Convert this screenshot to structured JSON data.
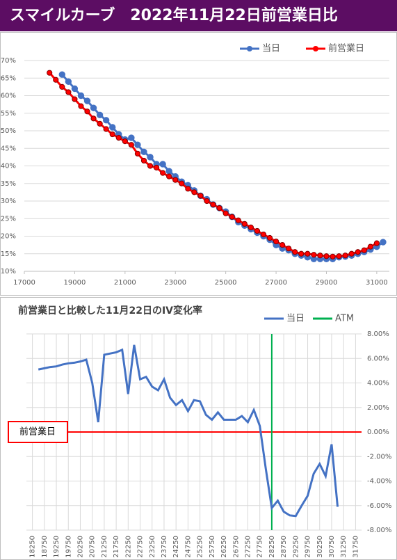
{
  "header": {
    "title": "スマイルカーブ　2022年11月22日前営業日比"
  },
  "chart_data": [
    {
      "type": "line",
      "legend": "top",
      "markers": true,
      "grid": true,
      "xlim": [
        17000,
        31500
      ],
      "xticks": [
        17000,
        19000,
        21000,
        23000,
        25000,
        27000,
        29000,
        31000
      ],
      "ylim": [
        10,
        70
      ],
      "yticks": [
        {
          "value": 10,
          "label": "10%"
        },
        {
          "value": 15,
          "label": "15%"
        },
        {
          "value": 20,
          "label": "20%"
        },
        {
          "value": 25,
          "label": "25%"
        },
        {
          "value": 30,
          "label": "30%"
        },
        {
          "value": 35,
          "label": "35%"
        },
        {
          "value": 40,
          "label": "40%"
        },
        {
          "value": 45,
          "label": "45%"
        },
        {
          "value": 50,
          "label": "50%"
        },
        {
          "value": 55,
          "label": "55%"
        },
        {
          "value": 60,
          "label": "60%"
        },
        {
          "value": 65,
          "label": "65%"
        },
        {
          "value": 70,
          "label": "70%"
        }
      ],
      "series": [
        {
          "name": "当日",
          "color": "#4472c4",
          "x": [
            18500,
            18750,
            19000,
            19250,
            19500,
            19750,
            20000,
            20250,
            20500,
            20750,
            21000,
            21250,
            21500,
            21750,
            22000,
            22250,
            22500,
            22750,
            23000,
            23250,
            23500,
            23750,
            24000,
            24250,
            24500,
            24750,
            25000,
            25250,
            25500,
            25750,
            26000,
            26250,
            26500,
            26750,
            27000,
            27250,
            27500,
            27750,
            28000,
            28250,
            28500,
            28750,
            29000,
            29250,
            29500,
            29750,
            30000,
            30250,
            30500,
            30750,
            31000,
            31250
          ],
          "values": [
            66,
            64,
            62,
            60,
            58.5,
            56.5,
            54.5,
            53,
            51,
            49,
            47.5,
            48,
            46,
            44,
            42.5,
            40.5,
            40.5,
            38.5,
            37,
            35.5,
            34.5,
            33,
            31.5,
            30.5,
            29,
            28,
            27,
            25.5,
            24,
            23,
            22,
            21,
            20,
            19,
            17.5,
            16.5,
            16,
            15,
            14.5,
            14,
            13.5,
            13.5,
            13.5,
            13.5,
            14,
            14.2,
            14.5,
            15,
            15.5,
            16.2,
            17,
            18.3
          ]
        },
        {
          "name": "前営業日",
          "color": "#ff0000",
          "x": [
            18000,
            18250,
            18500,
            18750,
            19000,
            19250,
            19500,
            19750,
            20000,
            20250,
            20500,
            20750,
            21000,
            21250,
            21500,
            21750,
            22000,
            22250,
            22500,
            22750,
            23000,
            23250,
            23500,
            23750,
            24000,
            24250,
            24500,
            24750,
            25000,
            25250,
            25500,
            25750,
            26000,
            26250,
            26500,
            26750,
            27000,
            27250,
            27500,
            27750,
            28000,
            28250,
            28500,
            28750,
            29000,
            29250,
            29500,
            29750,
            30000,
            30250,
            30500,
            30750,
            31000
          ],
          "values": [
            66.5,
            64.5,
            62.5,
            61,
            59,
            57,
            55.5,
            53.5,
            52,
            50.5,
            49,
            48,
            47,
            46,
            43.5,
            41.5,
            40,
            39.5,
            38,
            37,
            36,
            35,
            33.5,
            32.5,
            31.5,
            30,
            29,
            28,
            26.5,
            25.5,
            24.5,
            23.5,
            22.5,
            21.5,
            20.5,
            19.5,
            18.5,
            17.5,
            16.5,
            15.5,
            15,
            15,
            14.7,
            14.5,
            14.3,
            14.2,
            14.3,
            14.5,
            15,
            15.5,
            16,
            17,
            18
          ]
        }
      ]
    },
    {
      "type": "line",
      "title": "前営業日と比較した11月22日のIV変化率",
      "legend": "top-right",
      "markers": false,
      "grid": true,
      "xlim": [
        18000,
        32000
      ],
      "xticks": [
        18250,
        18750,
        19250,
        19750,
        20250,
        20750,
        21250,
        21750,
        22250,
        22750,
        23250,
        23750,
        24250,
        24750,
        25250,
        25750,
        26250,
        26750,
        27250,
        27750,
        28250,
        28750,
        29250,
        29750,
        30250,
        30750,
        31250,
        31750
      ],
      "ylim": [
        -8,
        8
      ],
      "yticks": [
        {
          "value": -8,
          "label": "-8.00%"
        },
        {
          "value": -6,
          "label": "-6.00%"
        },
        {
          "value": -4,
          "label": "-4.00%"
        },
        {
          "value": -2,
          "label": "-2.00%"
        },
        {
          "value": 0,
          "label": "0.00%"
        },
        {
          "value": 2,
          "label": "2.00%"
        },
        {
          "value": 4,
          "label": "4.00%"
        },
        {
          "value": 6,
          "label": "6.00%"
        },
        {
          "value": 8,
          "label": "8.00%"
        }
      ],
      "series": [
        {
          "name": "当日",
          "color": "#4472c4",
          "x": [
            18500,
            18750,
            19000,
            19250,
            19500,
            19750,
            20000,
            20250,
            20500,
            20750,
            21000,
            21250,
            21500,
            21750,
            22000,
            22250,
            22500,
            22750,
            23000,
            23250,
            23500,
            23750,
            24000,
            24250,
            24500,
            24750,
            25000,
            25250,
            25500,
            25750,
            26000,
            26250,
            26500,
            26750,
            27000,
            27250,
            27500,
            27750,
            28000,
            28250,
            28500,
            28750,
            29000,
            29250,
            29500,
            29750,
            30000,
            30250,
            30500,
            30750,
            31000
          ],
          "values": [
            5.1,
            5.2,
            5.3,
            5.35,
            5.5,
            5.6,
            5.65,
            5.75,
            5.9,
            4.0,
            0.8,
            6.3,
            6.4,
            6.5,
            6.7,
            3.1,
            7.1,
            4.3,
            4.5,
            3.7,
            3.4,
            4.3,
            2.8,
            2.2,
            2.6,
            1.7,
            2.6,
            2.5,
            1.4,
            1.0,
            1.6,
            1.0,
            1.0,
            1.0,
            1.3,
            0.8,
            1.8,
            0.5,
            -3.0,
            -6.2,
            -5.6,
            -6.5,
            -6.8,
            -6.85,
            -6.0,
            -5.2,
            -3.4,
            -2.6,
            -3.6,
            -1.0,
            -6.1
          ]
        }
      ],
      "atm": {
        "name": "ATM",
        "color": "#00b050",
        "x": 28250
      },
      "baseline": {
        "label": "前営業日",
        "color": "#ff0000",
        "value": 0
      }
    }
  ]
}
